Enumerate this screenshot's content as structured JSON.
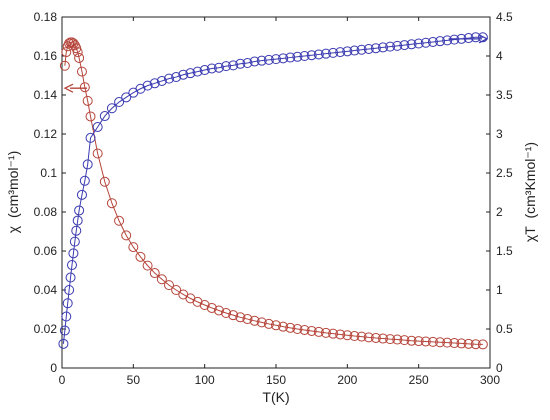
{
  "chart_data": {
    "type": "scatter",
    "x_axis": {
      "label": "T(K)",
      "range": [
        0,
        300
      ],
      "ticks": [
        "0",
        "50",
        "100",
        "150",
        "200",
        "250",
        "300"
      ]
    },
    "y_axis_left": {
      "label_symbol": "χ",
      "label_units": "(cm³mol⁻¹)",
      "range": [
        0,
        0.18
      ],
      "ticks": [
        "0",
        "0.02",
        "0.04",
        "0.06",
        "0.08",
        "0.1",
        "0.12",
        "0.14",
        "0.16",
        "0.18"
      ]
    },
    "y_axis_right": {
      "label_symbol": "χT",
      "label_units": "(cm³Kmol⁻¹)",
      "range": [
        0,
        4.5
      ],
      "ticks": [
        "0",
        "0.5",
        "1",
        "1.5",
        "2",
        "2.5",
        "3",
        "3.5",
        "4",
        "4.5"
      ]
    },
    "grid": false,
    "series": [
      {
        "axis": "left",
        "color": "#b5453a",
        "x": [
          2,
          3,
          4,
          5,
          6,
          7,
          8,
          9,
          10,
          11,
          12,
          14,
          16,
          18,
          20,
          25,
          30,
          35,
          40,
          45,
          50,
          55,
          60,
          65,
          70,
          75,
          80,
          85,
          90,
          95,
          100,
          105,
          110,
          115,
          120,
          125,
          130,
          135,
          140,
          145,
          150,
          155,
          160,
          165,
          170,
          175,
          180,
          185,
          190,
          195,
          200,
          205,
          210,
          215,
          220,
          225,
          230,
          235,
          240,
          245,
          250,
          255,
          260,
          265,
          270,
          275,
          280,
          285,
          290,
          295
        ],
        "values": [
          0.155,
          0.162,
          0.165,
          0.1665,
          0.167,
          0.167,
          0.1665,
          0.1655,
          0.164,
          0.162,
          0.159,
          0.152,
          0.144,
          0.137,
          0.129,
          0.11,
          0.0955,
          0.0845,
          0.0755,
          0.068,
          0.062,
          0.057,
          0.0525,
          0.0487,
          0.0455,
          0.0425,
          0.04,
          0.0377,
          0.0357,
          0.0339,
          0.0323,
          0.0308,
          0.0295,
          0.0282,
          0.0271,
          0.026,
          0.0251,
          0.0242,
          0.0234,
          0.0226,
          0.0219,
          0.0212,
          0.0206,
          0.02,
          0.0195,
          0.019,
          0.0185,
          0.018,
          0.0176,
          0.0172,
          0.0168,
          0.0164,
          0.0161,
          0.0157,
          0.0154,
          0.0151,
          0.0148,
          0.0146,
          0.0143,
          0.014,
          0.0138,
          0.0136,
          0.0134,
          0.0132,
          0.013,
          0.0128,
          0.0126,
          0.0124,
          0.0122,
          0.0121
        ],
        "arrow": {
          "points_to": "left",
          "at_x": 12,
          "at_value": 0.1435
        }
      },
      {
        "axis": "right",
        "color": "#3a3ab0",
        "x": [
          1,
          2,
          3,
          4,
          5,
          6,
          7,
          8,
          9,
          10,
          11,
          12,
          14,
          16,
          18,
          20,
          25,
          30,
          35,
          40,
          45,
          50,
          55,
          60,
          65,
          70,
          75,
          80,
          85,
          90,
          95,
          100,
          105,
          110,
          115,
          120,
          125,
          130,
          135,
          140,
          145,
          150,
          155,
          160,
          165,
          170,
          175,
          180,
          185,
          190,
          195,
          200,
          205,
          210,
          215,
          220,
          225,
          230,
          235,
          240,
          245,
          250,
          255,
          260,
          265,
          270,
          275,
          280,
          285,
          290,
          295
        ],
        "values": [
          0.31,
          0.48,
          0.66,
          0.83,
          1.0,
          1.16,
          1.32,
          1.47,
          1.62,
          1.76,
          1.89,
          2.02,
          2.22,
          2.4,
          2.61,
          2.95,
          3.09,
          3.23,
          3.33,
          3.41,
          3.47,
          3.53,
          3.58,
          3.62,
          3.65,
          3.68,
          3.71,
          3.73,
          3.76,
          3.78,
          3.8,
          3.82,
          3.84,
          3.85,
          3.87,
          3.88,
          3.9,
          3.91,
          3.93,
          3.94,
          3.95,
          3.96,
          3.97,
          3.98,
          3.99,
          4.0,
          4.01,
          4.02,
          4.03,
          4.04,
          4.05,
          4.06,
          4.07,
          4.08,
          4.09,
          4.1,
          4.11,
          4.12,
          4.13,
          4.14,
          4.15,
          4.16,
          4.17,
          4.18,
          4.19,
          4.2,
          4.21,
          4.22,
          4.23,
          4.24,
          4.24
        ],
        "arrow": {
          "points_to": "right",
          "at_x": 285,
          "at_value": 4.22
        }
      }
    ]
  }
}
